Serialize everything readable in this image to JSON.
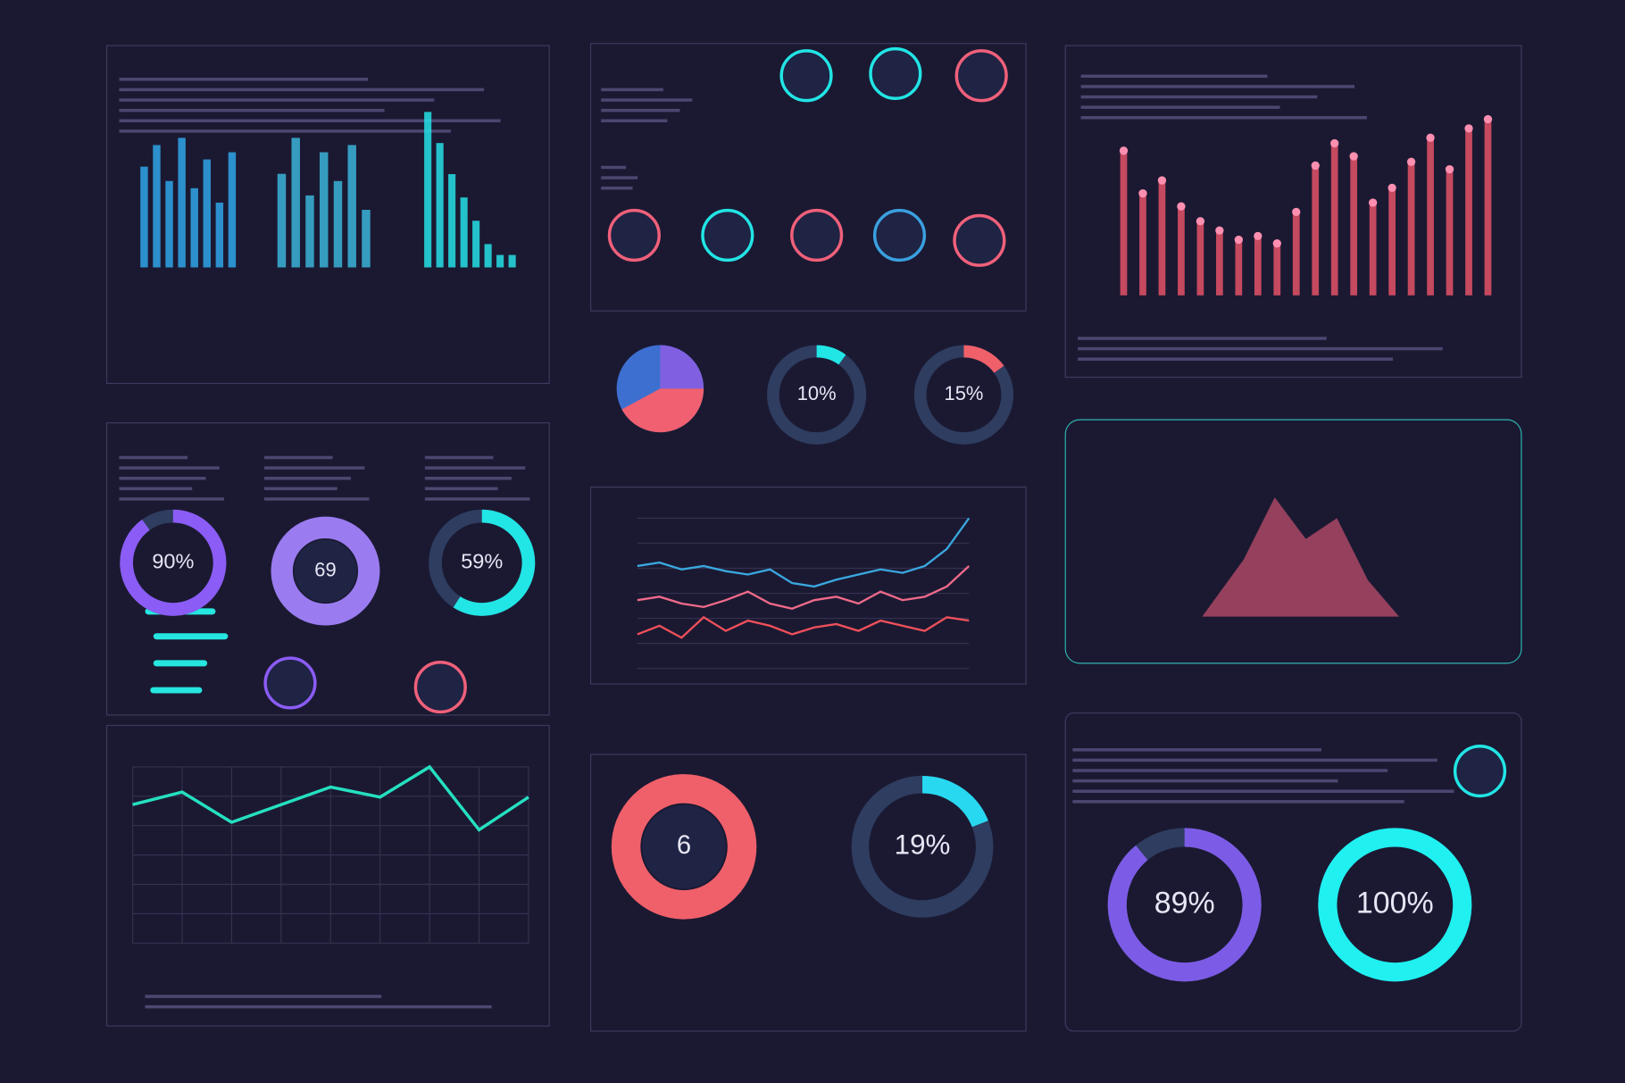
{
  "gauges": [
    {
      "label": "90%",
      "value": 90
    },
    {
      "label": "59%",
      "value": 59
    },
    {
      "label": "10%",
      "value": 10
    },
    {
      "label": "15%",
      "value": 15
    },
    {
      "label": "19%",
      "value": 19
    },
    {
      "label": "89%",
      "value": 89
    },
    {
      "label": "100%",
      "value": 100
    }
  ],
  "center_texts": [
    "69",
    "6"
  ],
  "bar_groups": [
    {
      "color": "#2fa6e8",
      "values": [
        70,
        85,
        60,
        90,
        55,
        75,
        45,
        80
      ]
    },
    {
      "color": "#3bb4d8",
      "values": [
        65,
        90,
        50,
        80,
        60,
        85,
        40
      ]
    },
    {
      "color": "#26e0e6",
      "values": [
        100,
        80,
        60,
        45,
        30,
        15,
        8,
        8
      ]
    }
  ],
  "tall_bars": {
    "color": "#f0556a",
    "values": [
      78,
      55,
      62,
      48,
      40,
      35,
      30,
      32,
      28,
      45,
      70,
      82,
      75,
      50,
      58,
      72,
      85,
      68,
      90,
      95
    ]
  },
  "trend": {
    "series": [
      {
        "color": "#3aa8e0",
        "values": [
          60,
          62,
          58,
          60,
          57,
          55,
          58,
          50,
          48,
          52,
          55,
          58,
          56,
          60,
          70,
          88
        ]
      },
      {
        "color": "#f06a8a",
        "values": [
          40,
          42,
          38,
          36,
          40,
          45,
          38,
          35,
          40,
          42,
          38,
          45,
          40,
          42,
          48,
          60
        ]
      },
      {
        "color": "#f0505a",
        "values": [
          20,
          25,
          18,
          30,
          22,
          28,
          25,
          20,
          24,
          26,
          22,
          28,
          25,
          22,
          30,
          28
        ]
      }
    ]
  },
  "line": {
    "color": "#25e0c0",
    "values": [
      55,
      60,
      48,
      55,
      62,
      58,
      70,
      45,
      58
    ]
  }
}
